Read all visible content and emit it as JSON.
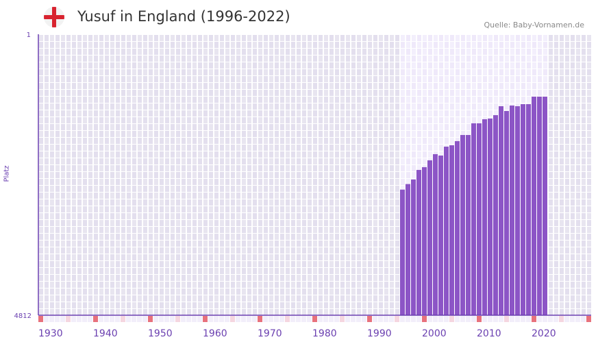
{
  "header": {
    "title": "Yusuf in England (1996-2022)",
    "source": "Quelle: Baby-Vornamen.de",
    "flag_icon": "england-flag-icon"
  },
  "chart_data": {
    "type": "bar",
    "title": "Yusuf in England (1996-2022)",
    "xlabel": "",
    "ylabel": "Platz",
    "ylim": [
      4812,
      1
    ],
    "y_ticks": [
      "1",
      "4812"
    ],
    "x_range": [
      1930,
      2030
    ],
    "x_ticks": [
      "1930",
      "1940",
      "1950",
      "1960",
      "1970",
      "1980",
      "1990",
      "2000",
      "2010",
      "2020"
    ],
    "categories": [
      1996,
      1997,
      1998,
      1999,
      2000,
      2001,
      2002,
      2003,
      2004,
      2005,
      2006,
      2007,
      2008,
      2009,
      2010,
      2011,
      2012,
      2013,
      2014,
      2015,
      2016,
      2017,
      2018,
      2019,
      2020,
      2021,
      2022
    ],
    "values": [
      2661,
      2566,
      2488,
      2324,
      2277,
      2160,
      2054,
      2078,
      1925,
      1902,
      1831,
      1726,
      1726,
      1526,
      1526,
      1456,
      1444,
      1386,
      1233,
      1315,
      1221,
      1233,
      1198,
      1198,
      1069,
      1069,
      1069
    ],
    "colors": {
      "bar": "#8c55c6",
      "axis": "#6a3fb0",
      "decade": "#e8717c",
      "half_decade": "#f5d6e0"
    }
  }
}
